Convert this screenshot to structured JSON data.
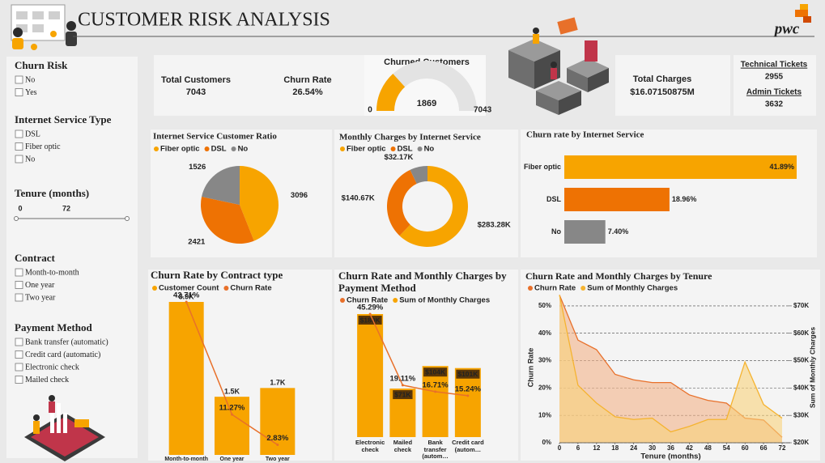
{
  "header": {
    "title": "CUSTOMER  RISK ANALYSIS",
    "logo": "pwc"
  },
  "filters": [
    {
      "title": "Churn Risk",
      "options": [
        "No",
        "Yes"
      ]
    },
    {
      "title": "Internet Service Type",
      "options": [
        "DSL",
        "Fiber optic",
        "No"
      ]
    },
    {
      "title": "Tenure (months)",
      "range": [
        0,
        72
      ]
    },
    {
      "title": "Contract",
      "options": [
        "Month-to-month",
        "One year",
        "Two year"
      ]
    },
    {
      "title": "Payment Method",
      "options": [
        "Bank transfer (automatic)",
        "Credit card (automatic)",
        "Electronic check",
        "Mailed check"
      ]
    }
  ],
  "kpis": {
    "total_customers": {
      "label": "Total Customers",
      "value": 7043
    },
    "churn_rate": {
      "label": "Churn Rate",
      "value": "26.54%"
    },
    "total_charges": {
      "label": "Total Charges",
      "value": "$16.07150875M"
    },
    "technical_tickets": {
      "label": "Technical Tickets",
      "value": 2955
    },
    "admin_tickets": {
      "label": "Admin Tickets",
      "value": 3632
    }
  },
  "chart_data": [
    {
      "type": "gauge",
      "title": "Churned Customers",
      "value": 1869,
      "min": 0,
      "max": 7043,
      "color": "#f7a400",
      "track_color": "#e3e3e3"
    },
    {
      "type": "pie",
      "title": "Internet Service Customer Ratio",
      "categories": [
        "Fiber optic",
        "DSL",
        "No"
      ],
      "values": [
        3096,
        2421,
        1526
      ],
      "colors": [
        "#f7a400",
        "#ee7203",
        "#878787"
      ]
    },
    {
      "type": "donut",
      "title": "Monthly Charges by Internet Service",
      "categories": [
        "Fiber optic",
        "DSL",
        "No"
      ],
      "values": [
        283280,
        140670,
        32170
      ],
      "value_labels": [
        "$283.28K",
        "$140.67K",
        "$32.17K"
      ],
      "colors": [
        "#f7a400",
        "#ee7203",
        "#878787"
      ]
    },
    {
      "type": "hbar",
      "title": "Churn rate by Internet Service",
      "categories": [
        "Fiber optic",
        "DSL",
        "No"
      ],
      "values": [
        41.89,
        18.96,
        7.4
      ],
      "value_labels": [
        "41.89%",
        "18.96%",
        "7.40%"
      ],
      "colors": [
        "#f7a400",
        "#ee7203",
        "#878787"
      ]
    },
    {
      "type": "combo",
      "title": "Churn Rate by Contract type",
      "categories": [
        "Month-to-month",
        "One year",
        "Two year"
      ],
      "series": [
        {
          "name": "Customer Count",
          "type": "bar",
          "color": "#f7a400",
          "values": [
            3875,
            1473,
            1695
          ],
          "value_labels": [
            "3.9K",
            "1.5K",
            "1.7K"
          ]
        },
        {
          "name": "Churn Rate",
          "type": "line",
          "color": "#e8702a",
          "values": [
            42.71,
            11.27,
            2.83
          ],
          "value_labels": [
            "42.71%",
            "11.27%",
            "2.83%"
          ]
        }
      ]
    },
    {
      "type": "combo",
      "title": "Churn Rate and Monthly Charges by Payment Method",
      "categories": [
        "Electronic check",
        "Mailed check",
        "Bank transfer (autom…",
        "Credit card (autom…"
      ],
      "series": [
        {
          "name": "Churn Rate",
          "type": "line",
          "color": "#e8702a",
          "values": [
            45.29,
            19.11,
            16.71,
            15.24
          ],
          "value_labels": [
            "45.29%",
            "19.11%",
            "16.71%",
            "15.24%"
          ]
        },
        {
          "name": "Sum of Monthly Charges",
          "type": "bar",
          "color": "#f7a400",
          "values": [
            180000,
            71000,
            104000,
            101000
          ],
          "value_labels": [
            "$180K",
            "$71K",
            "$104K",
            "$101K"
          ]
        }
      ]
    },
    {
      "type": "area",
      "title": "Churn Rate and Monthly Charges by Tenure",
      "x_label": "Tenure (months)",
      "y_label": "Churn Rate",
      "y2_label": "Sum of Monthly Charges",
      "x": [
        0,
        6,
        12,
        18,
        24,
        30,
        36,
        42,
        48,
        54,
        60,
        66,
        72
      ],
      "xlim": [
        0,
        72
      ],
      "xticks": [
        0,
        6,
        12,
        18,
        24,
        30,
        36,
        42,
        48,
        54,
        60,
        66,
        72
      ],
      "ylim": [
        0,
        55
      ],
      "yticks": [
        {
          "value": 0,
          "label": "0%"
        },
        {
          "value": 10,
          "label": "10%"
        },
        {
          "value": 20,
          "label": "20%"
        },
        {
          "value": 30,
          "label": "30%"
        },
        {
          "value": 40,
          "label": "40%"
        },
        {
          "value": 50,
          "label": "50%"
        }
      ],
      "y2lim": [
        20000,
        75000
      ],
      "y2ticks": [
        {
          "value": 20000,
          "label": "$20K"
        },
        {
          "value": 30000,
          "label": "$30K"
        },
        {
          "value": 40000,
          "label": "$40K"
        },
        {
          "value": 50000,
          "label": "$50K"
        },
        {
          "value": 60000,
          "label": "$60K"
        },
        {
          "value": 70000,
          "label": "$70K"
        }
      ],
      "grid": true,
      "series": [
        {
          "name": "Churn Rate",
          "color": "#e8702a",
          "fill": "#f2b289",
          "values": [
            54,
            37.5,
            34,
            25,
            23,
            22,
            22,
            17.5,
            15.5,
            14.5,
            9,
            8.3,
            2
          ]
        },
        {
          "name": "Sum of Monthly Charges",
          "color": "#f5b330",
          "fill": "#f8d27c",
          "axis": "y2",
          "values": [
            74000,
            41000,
            34500,
            29500,
            28500,
            29000,
            24000,
            26000,
            28500,
            28500,
            49500,
            34000,
            29000
          ]
        }
      ]
    }
  ]
}
